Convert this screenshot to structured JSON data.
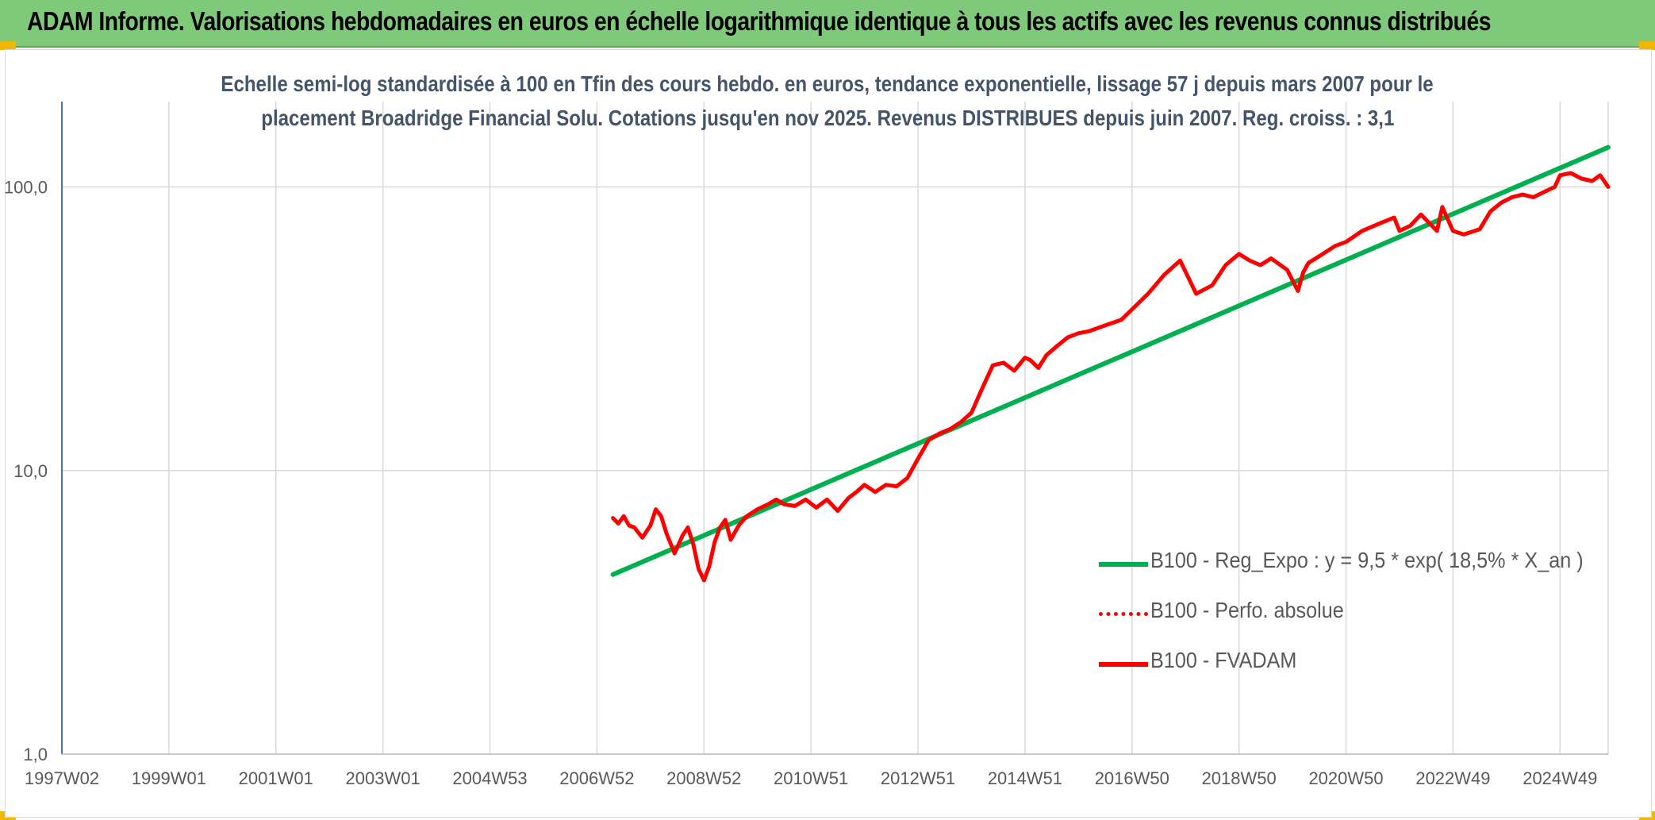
{
  "banner": {
    "title": "ADAM Informe. Valorisations hebdomadaires en euros en échelle logarithmique identique à tous les actifs avec les revenus connus distribués"
  },
  "colors": {
    "banner_bg": "#7fc97a",
    "corner_accent": "#f2b705",
    "regression_line": "#00b050",
    "fvadam_line": "#ff0000",
    "perfo_line": "#ff0000",
    "grid": "#d9d9d9",
    "subtitle_text": "#44546a"
  },
  "chart_data": {
    "type": "line",
    "subtitle_line1": "Echelle semi-log standardisée à 100 en Tfin des cours hebdo. en euros, tendance exponentielle, lissage 57 j depuis mars 2007 pour le",
    "subtitle_line2": "placement Broadridge Financial Solu. Cotations jusqu'en nov 2025. Revenus DISTRIBUES depuis juin 2007. Reg. croiss. : 3,1",
    "y_scale": "log",
    "ylim": [
      1,
      200
    ],
    "y_ticks": [
      {
        "value": 1,
        "label": "1,0"
      },
      {
        "value": 10,
        "label": "10,0"
      },
      {
        "value": 100,
        "label": "100,0"
      }
    ],
    "xlim": [
      1997.0,
      2025.9
    ],
    "x_ticks": [
      {
        "pos": 1997.0,
        "label": "1997W02"
      },
      {
        "pos": 1999.0,
        "label": "1999W01"
      },
      {
        "pos": 2001.0,
        "label": "2001W01"
      },
      {
        "pos": 2003.0,
        "label": "2003W01"
      },
      {
        "pos": 2005.0,
        "label": "2004W53"
      },
      {
        "pos": 2007.0,
        "label": "2006W52"
      },
      {
        "pos": 2009.0,
        "label": "2008W52"
      },
      {
        "pos": 2011.0,
        "label": "2010W51"
      },
      {
        "pos": 2013.0,
        "label": "2012W51"
      },
      {
        "pos": 2015.0,
        "label": "2014W51"
      },
      {
        "pos": 2017.0,
        "label": "2016W50"
      },
      {
        "pos": 2019.0,
        "label": "2018W50"
      },
      {
        "pos": 2021.0,
        "label": "2020W50"
      },
      {
        "pos": 2023.0,
        "label": "2022W49"
      },
      {
        "pos": 2025.0,
        "label": "2024W49"
      }
    ],
    "legend": {
      "placement": "bottom-right",
      "entries": [
        {
          "label": "B100 - Reg_Expo : y = 9,5 * exp( 18,5% *  X_an )",
          "style": "solid",
          "color": "#00b050"
        },
        {
          "label": "B100 - Perfo. absolue",
          "style": "dotted",
          "color": "#ff0000"
        },
        {
          "label": "B100 - FVADAM",
          "style": "solid",
          "color": "#ff0000"
        }
      ]
    },
    "series": [
      {
        "name": "B100 - Reg_Expo : y = 9,5 * exp( 18,5% *  X_an )",
        "color": "#00b050",
        "x": [
          2007.3,
          2025.9
        ],
        "values": [
          4.3,
          138
        ]
      },
      {
        "name": "B100 - FVADAM",
        "color": "#ff0000",
        "x": [
          2007.3,
          2007.4,
          2007.5,
          2007.6,
          2007.7,
          2007.85,
          2008.0,
          2008.1,
          2008.2,
          2008.3,
          2008.45,
          2008.6,
          2008.7,
          2008.8,
          2008.9,
          2009.0,
          2009.1,
          2009.2,
          2009.3,
          2009.4,
          2009.5,
          2009.65,
          2009.8,
          2010.0,
          2010.2,
          2010.35,
          2010.5,
          2010.7,
          2010.9,
          2011.1,
          2011.3,
          2011.5,
          2011.7,
          2011.85,
          2012.0,
          2012.2,
          2012.4,
          2012.6,
          2012.8,
          2013.0,
          2013.2,
          2013.4,
          2013.6,
          2013.8,
          2014.0,
          2014.2,
          2014.4,
          2014.6,
          2014.8,
          2015.0,
          2015.1,
          2015.25,
          2015.4,
          2015.6,
          2015.8,
          2016.0,
          2016.2,
          2016.5,
          2016.8,
          2017.0,
          2017.3,
          2017.6,
          2017.9,
          2018.2,
          2018.5,
          2018.75,
          2018.9,
          2019.0,
          2019.2,
          2019.4,
          2019.6,
          2019.9,
          2020.1,
          2020.2,
          2020.3,
          2020.5,
          2020.8,
          2021.0,
          2021.3,
          2021.6,
          2021.9,
          2022.0,
          2022.2,
          2022.4,
          2022.7,
          2022.8,
          2023.0,
          2023.2,
          2023.5,
          2023.7,
          2023.9,
          2024.1,
          2024.3,
          2024.5,
          2024.7,
          2024.9,
          2025.0,
          2025.2,
          2025.4,
          2025.6,
          2025.75,
          2025.9
        ],
        "values": [
          6.8,
          6.5,
          6.9,
          6.4,
          6.3,
          5.8,
          6.4,
          7.3,
          6.9,
          6.0,
          5.1,
          5.9,
          6.3,
          5.5,
          4.5,
          4.1,
          4.6,
          5.6,
          6.3,
          6.7,
          5.7,
          6.4,
          6.9,
          7.3,
          7.6,
          7.9,
          7.6,
          7.5,
          7.9,
          7.4,
          7.9,
          7.2,
          8.0,
          8.4,
          8.9,
          8.4,
          8.9,
          8.8,
          9.4,
          11.0,
          12.8,
          13.5,
          14.0,
          14.8,
          16.0,
          19.5,
          23.5,
          24.0,
          22.5,
          25.0,
          24.5,
          23.0,
          25.5,
          27.5,
          29.5,
          30.5,
          31.0,
          32.5,
          34.0,
          37.0,
          42.0,
          49.0,
          55.0,
          42.0,
          45.0,
          53.0,
          56.0,
          58.0,
          55.0,
          53.0,
          56.0,
          51.0,
          43.0,
          50.0,
          54.0,
          57.0,
          62.0,
          64.0,
          70.0,
          74.0,
          78.0,
          70.0,
          73.0,
          80.0,
          70.0,
          85.0,
          70.0,
          68.0,
          71.0,
          82.0,
          88.0,
          92.0,
          94.0,
          92.0,
          96.0,
          100.0,
          110.0,
          112.0,
          107.0,
          105.0,
          110.0,
          100.0
        ]
      }
    ]
  }
}
